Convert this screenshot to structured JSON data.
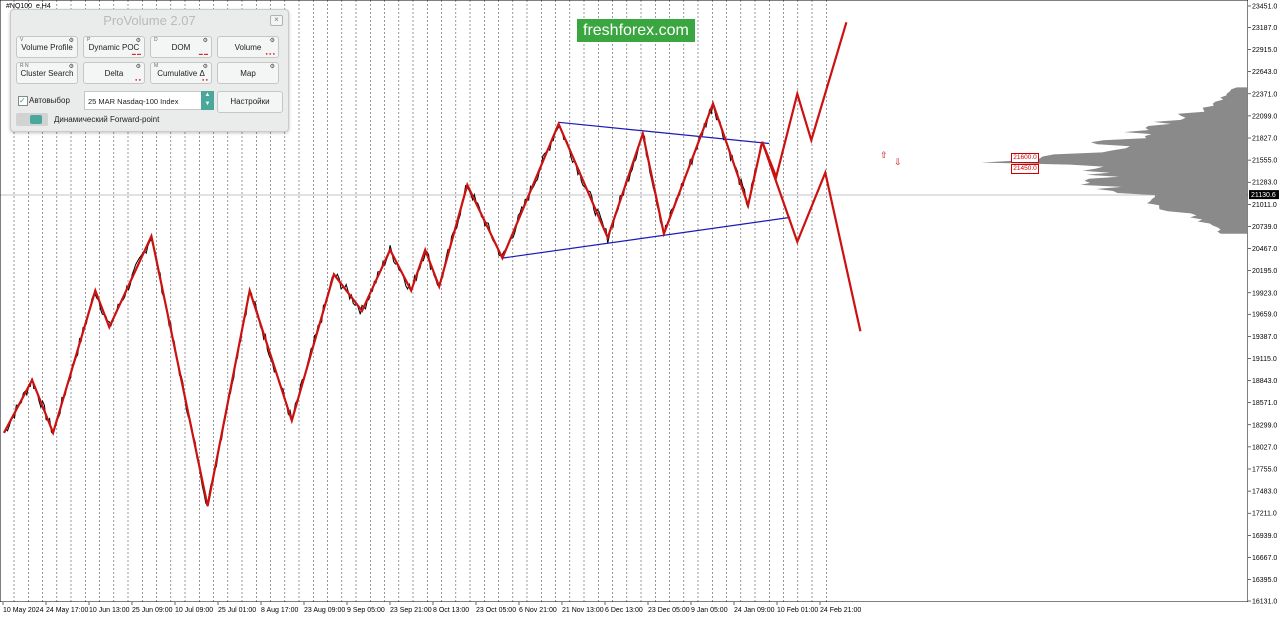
{
  "symbol": "#NQ100_e,H4",
  "watermark": "freshforex.com",
  "provolume": {
    "title": "ProVolume 2.07",
    "close_glyph": "×",
    "buttons": [
      {
        "label": "Volume Profile",
        "key": "V",
        "active": true
      },
      {
        "label": "Dynamic POC",
        "key": "P",
        "active": false
      },
      {
        "label": "DOM",
        "key": "D",
        "active": false
      },
      {
        "label": "Volume",
        "key": "",
        "active": false
      },
      {
        "label": "Cluster Search",
        "key": "R N",
        "active": false
      },
      {
        "label": "Delta",
        "key": "",
        "active": false
      },
      {
        "label": "Cumulative Δ",
        "key": "M",
        "active": false
      },
      {
        "label": "Map",
        "key": "",
        "active": false
      }
    ],
    "auto_label": "Автовыбор",
    "auto_checked": true,
    "symbol_value": "25 MAR Nasdaq-100 Index",
    "settings_label": "Настройки",
    "forward_label": "Динамический Forward-point",
    "gear_icon": "gear-icon"
  },
  "price_axis": {
    "labels": [
      "23451.0",
      "23187.0",
      "22915.0",
      "22643.0",
      "22371.0",
      "22099.0",
      "21827.0",
      "21555.0",
      "21283.0",
      "21011.0",
      "20739.0",
      "20467.0",
      "20195.0",
      "19923.0",
      "19659.0",
      "19387.0",
      "19115.0",
      "18843.0",
      "18571.0",
      "18299.0",
      "18027.0",
      "17755.0",
      "17483.0",
      "17211.0",
      "16939.0",
      "16667.0",
      "16395.0",
      "16131.0"
    ],
    "current_price": "21130.6",
    "current_color": "#000000"
  },
  "time_axis": {
    "labels": [
      "10 May 2024",
      "24 May 17:00",
      "10 Jun 13:00",
      "25 Jun 09:00",
      "10 Jul 09:00",
      "25 Jul 01:00",
      "8 Aug 17:00",
      "23 Aug 09:00",
      "9 Sep 05:00",
      "23 Sep 21:00",
      "8 Oct 13:00",
      "23 Oct 05:00",
      "6 Nov 21:00",
      "21 Nov 13:00",
      "6 Dec 13:00",
      "23 Dec 05:00",
      "9 Jan 05:00",
      "24 Jan 09:00",
      "10 Feb 01:00",
      "24 Feb 21:00"
    ]
  },
  "levels": [
    {
      "label": "21600.0"
    },
    {
      "label": "21450.0"
    }
  ],
  "markers": {
    "up": "⇧",
    "down": "⇩"
  },
  "colors": {
    "zigzag": "#cc1111",
    "channel": "#1a1ab8",
    "price": "#000000",
    "profile": "#8a8a8a",
    "accent": "#4aa79b",
    "watermark_bg": "#3aa640"
  },
  "chart_data": {
    "type": "line",
    "ylim": [
      16131,
      23451
    ],
    "zigzag_pivots": [
      {
        "t": 0,
        "p": 18200
      },
      {
        "t": 4,
        "p": 18850
      },
      {
        "t": 7,
        "p": 18200
      },
      {
        "t": 13,
        "p": 19950
      },
      {
        "t": 15,
        "p": 19500
      },
      {
        "t": 21,
        "p": 20620
      },
      {
        "t": 29,
        "p": 17300
      },
      {
        "t": 35,
        "p": 19950
      },
      {
        "t": 41,
        "p": 18350
      },
      {
        "t": 47,
        "p": 20150
      },
      {
        "t": 51,
        "p": 19700
      },
      {
        "t": 55,
        "p": 20450
      },
      {
        "t": 58,
        "p": 19950
      },
      {
        "t": 60,
        "p": 20450
      },
      {
        "t": 62,
        "p": 20000
      },
      {
        "t": 66,
        "p": 21250
      },
      {
        "t": 71,
        "p": 20350
      },
      {
        "t": 79,
        "p": 22000
      },
      {
        "t": 86,
        "p": 20600
      },
      {
        "t": 91,
        "p": 21880
      },
      {
        "t": 94,
        "p": 20650
      },
      {
        "t": 101,
        "p": 22250
      },
      {
        "t": 106,
        "p": 21000
      },
      {
        "t": 108,
        "p": 21780
      }
    ],
    "forecast_pivots": [
      {
        "t": 108,
        "p": 21780
      },
      {
        "t": 110,
        "p": 21350
      },
      {
        "t": 113,
        "p": 22370
      },
      {
        "t": 115,
        "p": 21800
      },
      {
        "t": 120,
        "p": 23250
      }
    ],
    "forecast_alt_pivots": [
      {
        "t": 108,
        "p": 21780
      },
      {
        "t": 113,
        "p": 20550
      },
      {
        "t": 117,
        "p": 21400
      },
      {
        "t": 122,
        "p": 19450
      }
    ],
    "channel_upper": [
      {
        "t": 79,
        "p": 22020
      },
      {
        "t": 109,
        "p": 21760
      }
    ],
    "channel_lower": [
      {
        "t": 71,
        "p": 20350
      },
      {
        "t": 112,
        "p": 20850
      }
    ],
    "current_price": 21130.6
  }
}
